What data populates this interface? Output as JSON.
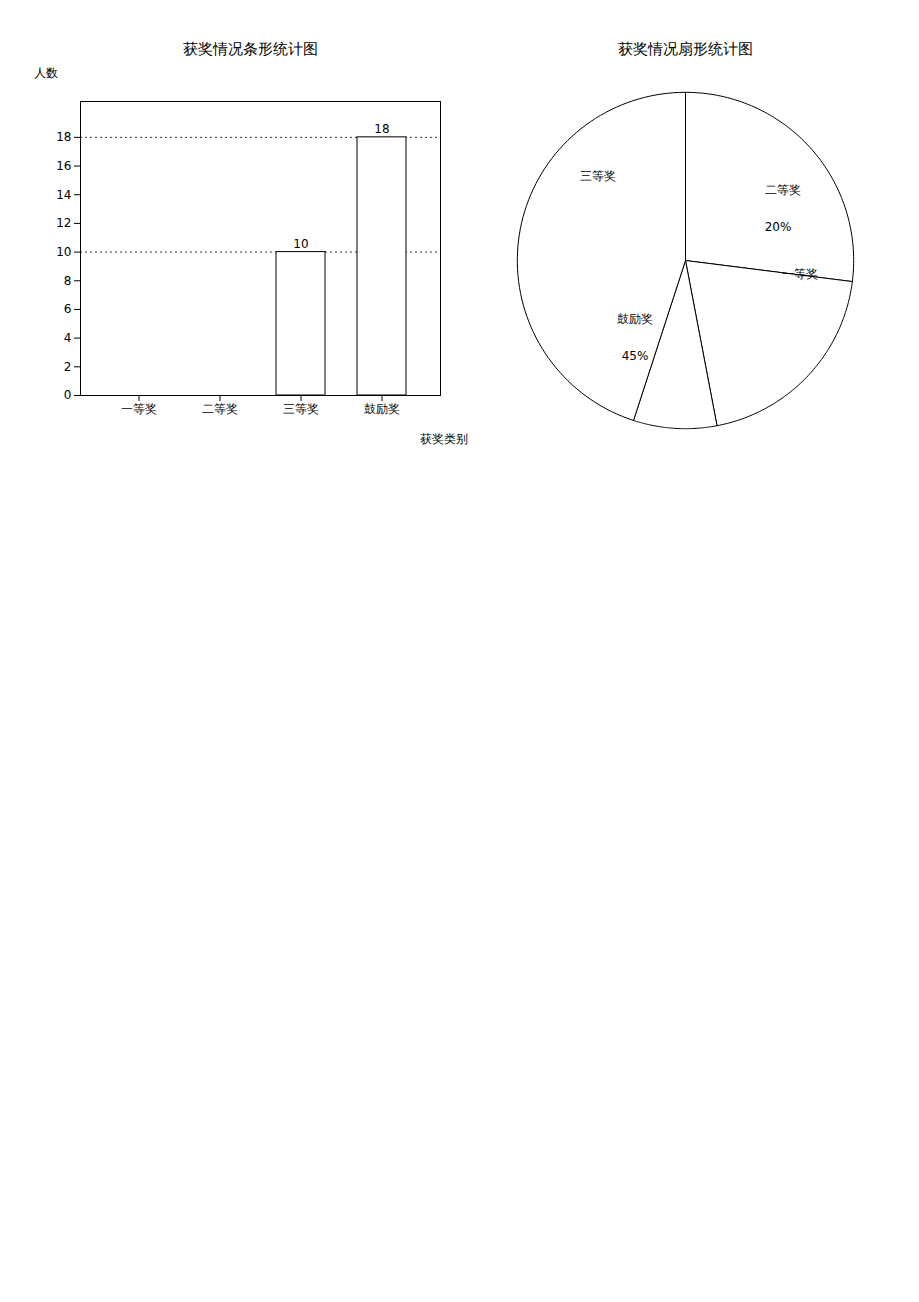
{
  "chart_data": [
    {
      "type": "bar",
      "title": "获奖情况条形统计图",
      "xlabel": "获奖类别",
      "ylabel": "人数",
      "categories": [
        "一等奖",
        "二等奖",
        "三等奖",
        "鼓励奖"
      ],
      "values": [
        0,
        0,
        10,
        18
      ],
      "value_labels": [
        null,
        null,
        "10",
        "18"
      ],
      "data_labels": true,
      "color": "#ffffff",
      "ylim": [
        0,
        20.5
      ],
      "yticks": [
        0,
        2,
        4,
        6,
        8,
        10,
        12,
        14,
        16,
        18
      ],
      "grid": false
    },
    {
      "type": "pie",
      "title": "获奖情况扇形统计图",
      "values": [
        27,
        20,
        8,
        45
      ],
      "colors": [
        "#ffffff",
        "#ffffff",
        "#ffffff",
        "#ffffff"
      ],
      "annotations": [
        "三等奖",
        "二等奖",
        "20%",
        "一等奖",
        "鼓励奖",
        "45%"
      ]
    }
  ]
}
